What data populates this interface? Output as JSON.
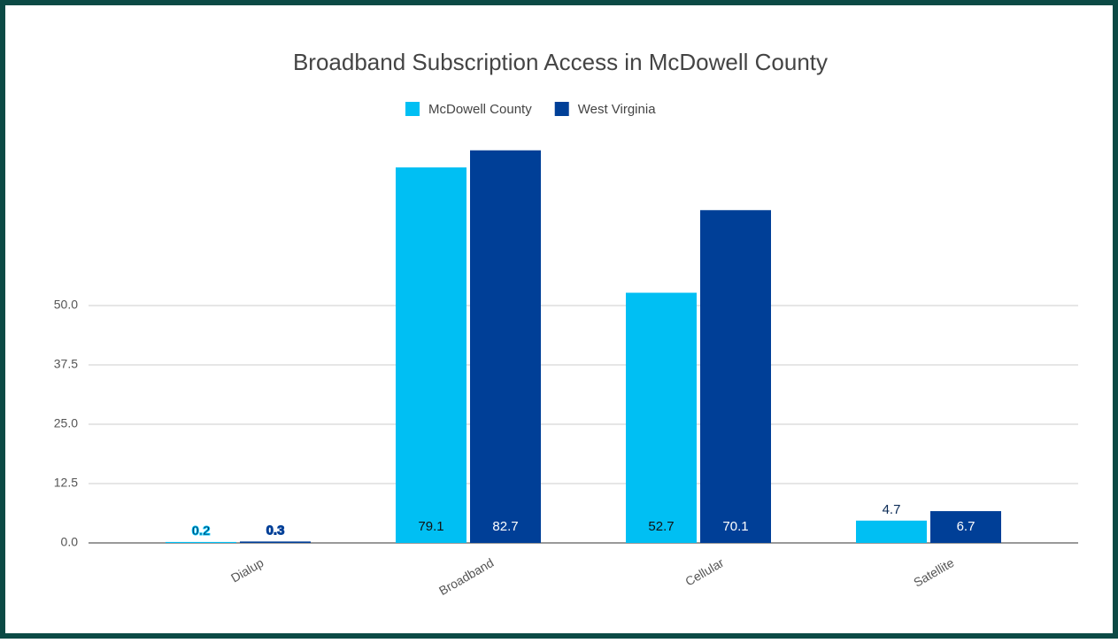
{
  "chart_data": {
    "type": "bar",
    "title": "Broadband Subscription Access in McDowell County",
    "categories": [
      "Dialup",
      "Broadband",
      "Cellular",
      "Satellite"
    ],
    "series": [
      {
        "name": "McDowell County",
        "color": "#00bff3",
        "values": [
          0.2,
          79.1,
          52.7,
          4.7
        ]
      },
      {
        "name": "West Virginia",
        "color": "#003f97",
        "values": [
          0.3,
          82.7,
          70.1,
          6.7
        ]
      }
    ],
    "ylim": [
      0,
      100
    ],
    "yticks": [
      {
        "value": 0,
        "label": "0.0"
      },
      12.5,
      {
        "value": 25,
        "label": "25.0"
      },
      37.5,
      {
        "value": 50,
        "label": "50.0"
      }
    ],
    "grid": true,
    "legend": "top"
  }
}
